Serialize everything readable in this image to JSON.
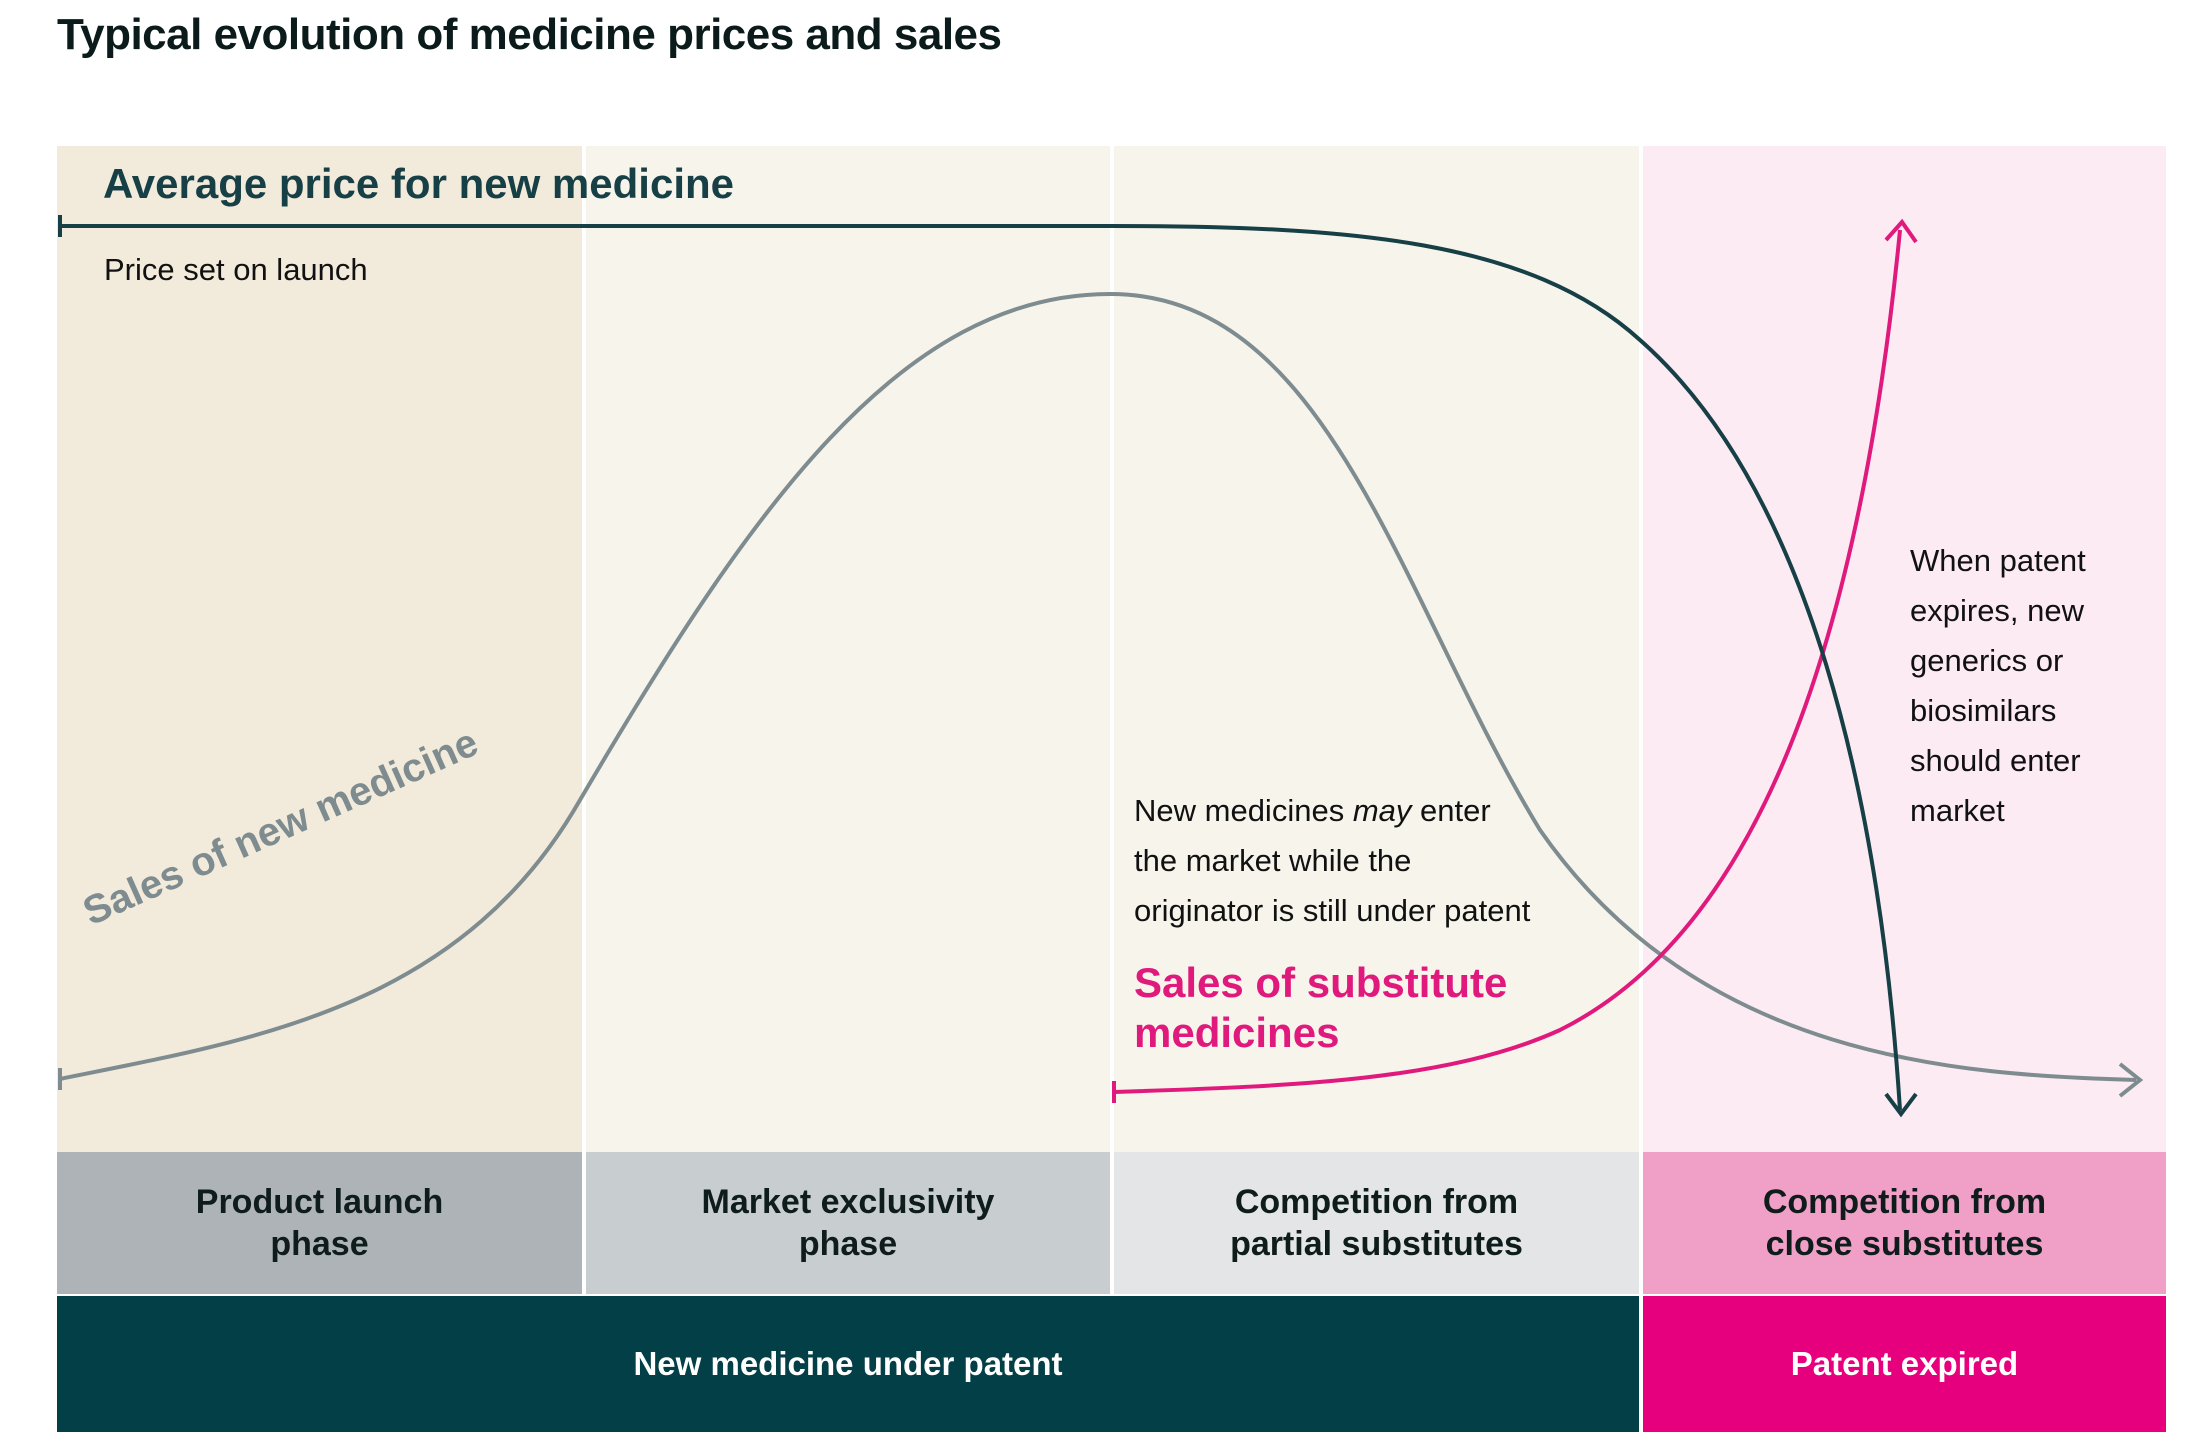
{
  "title": "Typical evolution of medicine prices and sales",
  "curves": {
    "price_label": "Average price for new medicine",
    "price_sublabel": "Price set on launch",
    "sales_label": "Sales of new medicine",
    "substitute_label": "Sales of substitute medicines"
  },
  "notes": {
    "new_medicines": {
      "line1_pre": "New medicines ",
      "line1_em": "may",
      "line1_post": " enter",
      "line2": "the market while the",
      "line3": "originator is still under patent"
    },
    "patent_expires": [
      "When patent",
      "expires, new",
      "generics or",
      "biosimilars",
      "should enter",
      "market"
    ]
  },
  "phases": [
    {
      "label": "Product launch\nphase",
      "color": "#adb3b6"
    },
    {
      "label": "Market exclusivity\nphase",
      "color": "#c8cdd0"
    },
    {
      "label": "Competition from\npartial substitutes",
      "color": "#e3e5e6"
    },
    {
      "label": "Competition from\nclose substitutes",
      "color": "#f09fc6"
    }
  ],
  "patent_status": [
    {
      "label": "New medicine under patent",
      "color": "#023f46"
    },
    {
      "label": "Patent expired",
      "color": "#e6007e"
    }
  ],
  "colors": {
    "price_curve": "#173f46",
    "sales_curve": "#7e8c90",
    "substitute_curve": "#e0197d",
    "panel_launch": "#f2ebdc",
    "panel_patent": "#f7f4ec",
    "panel_expired": "#fcebf3"
  }
}
